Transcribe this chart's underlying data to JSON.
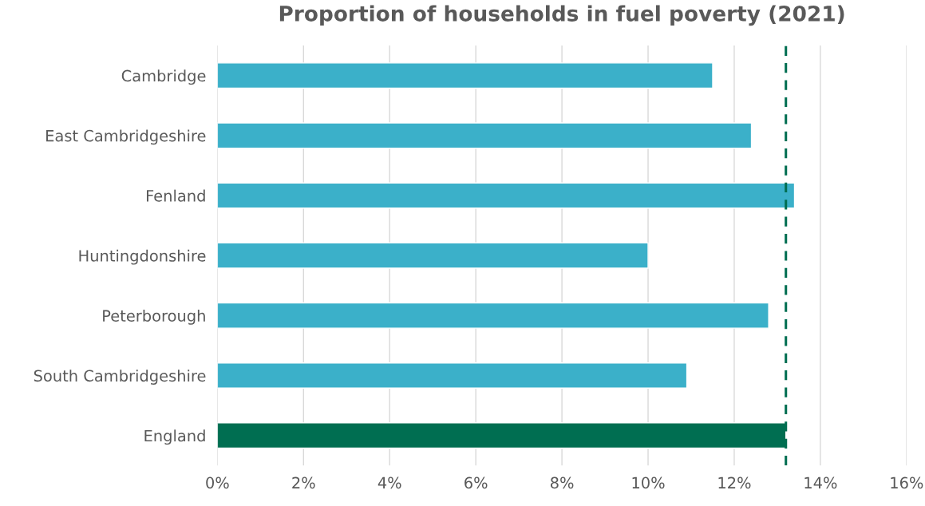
{
  "chart_data": {
    "type": "bar",
    "orientation": "horizontal",
    "title": "Proportion of households in fuel poverty (2021)",
    "categories": [
      "Cambridge",
      "East Cambridgeshire",
      "Fenland",
      "Huntingdonshire",
      "Peterborough",
      "South Cambridgeshire",
      "England"
    ],
    "values": [
      11.5,
      12.4,
      13.4,
      10.0,
      12.8,
      10.9,
      13.2
    ],
    "colors": [
      "#3bb0c9",
      "#3bb0c9",
      "#3bb0c9",
      "#3bb0c9",
      "#3bb0c9",
      "#3bb0c9",
      "#006e51"
    ],
    "xlim": [
      0,
      16
    ],
    "xticks": [
      {
        "value": 0,
        "label": "0%"
      },
      {
        "value": 2,
        "label": "2%"
      },
      {
        "value": 4,
        "label": "4%"
      },
      {
        "value": 6,
        "label": "6%"
      },
      {
        "value": 8,
        "label": "8%"
      },
      {
        "value": 10,
        "label": "10%"
      },
      {
        "value": 12,
        "label": "12%"
      },
      {
        "value": 14,
        "label": "14%"
      },
      {
        "value": 16,
        "label": "16%"
      }
    ],
    "grid": "x",
    "ref_lines": [
      {
        "axis": "x",
        "value": 13.2,
        "color": "#006e51",
        "line_style": "dashed"
      }
    ]
  }
}
